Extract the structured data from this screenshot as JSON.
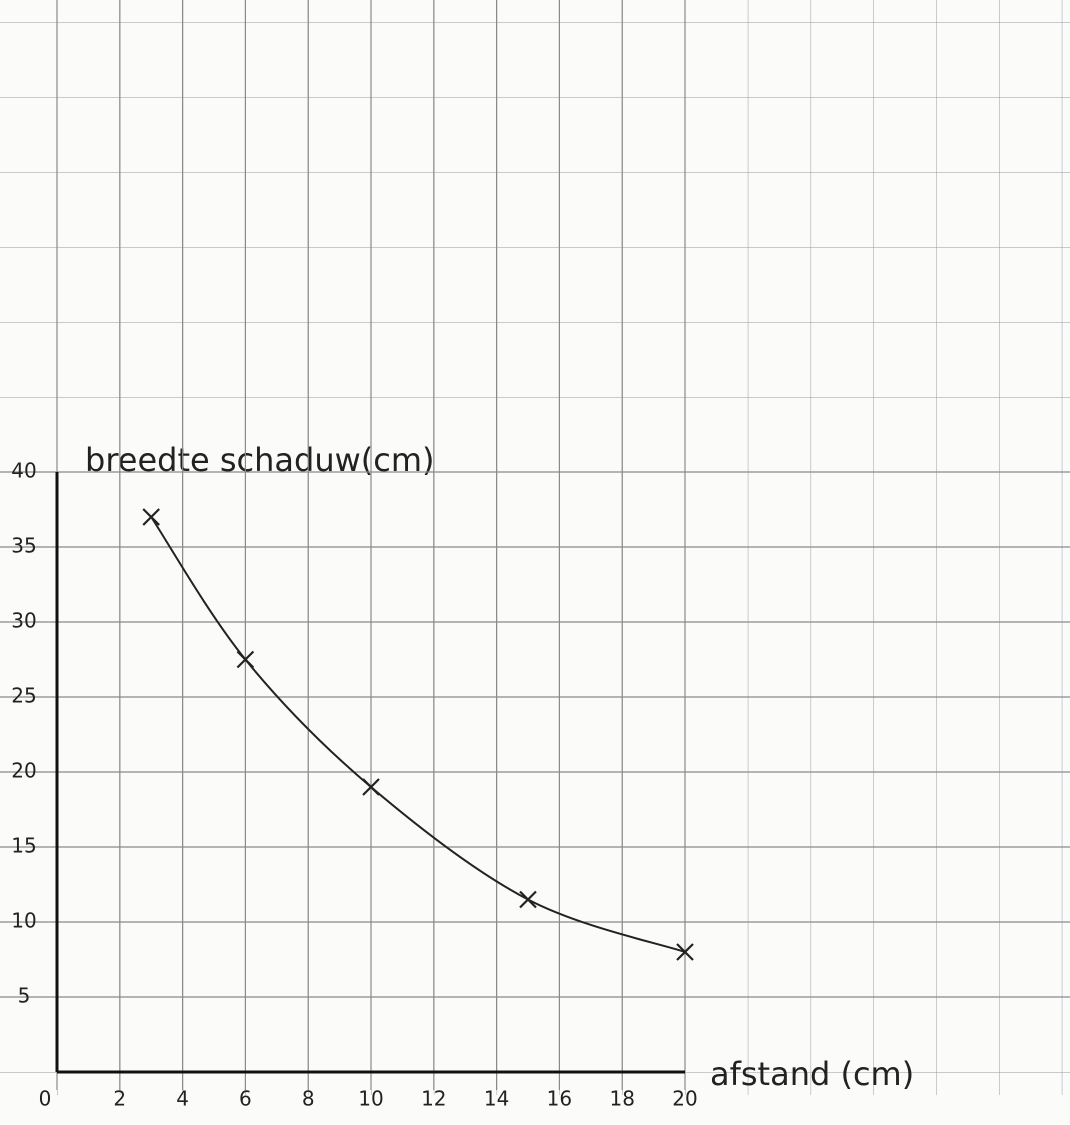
{
  "chart_data": {
    "type": "scatter",
    "y_label": "breedte schaduw(cm)",
    "x_label": "afstand (cm)",
    "series": [
      {
        "x": [
          3,
          6,
          10,
          15,
          20
        ],
        "values": [
          37,
          27.5,
          19,
          11.5,
          8
        ],
        "color": "#222222"
      }
    ],
    "fit_curve": true,
    "xlim": [
      0,
      20
    ],
    "xticks": [
      0,
      2,
      4,
      6,
      8,
      10,
      12,
      14,
      16,
      18,
      20
    ],
    "ylim": [
      0,
      40
    ],
    "yticks": [
      5,
      10,
      15,
      20,
      25,
      30,
      35,
      40
    ],
    "grid": true
  }
}
